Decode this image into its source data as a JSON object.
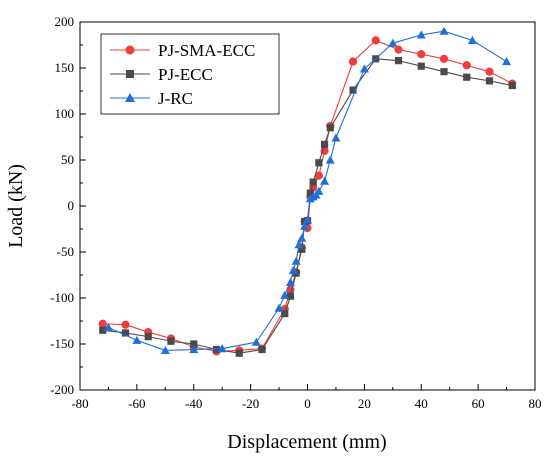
{
  "chart_data": {
    "type": "line",
    "xlabel": "Displacement (mm)",
    "ylabel": "Load (kN)",
    "xlim": [
      -80,
      80
    ],
    "ylim": [
      -200,
      200
    ],
    "xticks": [
      -80,
      -60,
      -40,
      -20,
      0,
      20,
      40,
      60,
      80
    ],
    "yticks": [
      -200,
      -150,
      -100,
      -50,
      0,
      50,
      100,
      150,
      200
    ],
    "grid": false,
    "legend_position": "top-left",
    "series": [
      {
        "name": "PJ-SMA-ECC",
        "color": "#f03c3c",
        "marker": "circle",
        "x": [
          -72,
          -64,
          -56,
          -48,
          -40,
          -32,
          -24,
          -16,
          -8,
          -6,
          -4,
          -2,
          -1,
          0,
          1,
          2,
          4,
          6,
          8,
          16,
          24,
          32,
          40,
          48,
          56,
          64,
          72
        ],
        "y": [
          -128,
          -129,
          -137,
          -144,
          -153,
          -158,
          -157,
          -155,
          -112,
          -91,
          -72,
          -45,
          -17,
          -24,
          10,
          20,
          33,
          60,
          87,
          157,
          180,
          170,
          165,
          160,
          153,
          146,
          133
        ]
      },
      {
        "name": "PJ-ECC",
        "color": "#4a4a4a",
        "marker": "square",
        "x": [
          -72,
          -64,
          -56,
          -48,
          -40,
          -32,
          -24,
          -16,
          -8,
          -6,
          -4,
          -2,
          -1,
          0,
          1,
          2,
          4,
          6,
          8,
          16,
          24,
          32,
          40,
          48,
          56,
          64,
          72
        ],
        "y": [
          -135,
          -138,
          -142,
          -147,
          -150,
          -156,
          -160,
          -156,
          -117,
          -98,
          -73,
          -47,
          -17,
          -16,
          14,
          26,
          47,
          67,
          85,
          126,
          160,
          158,
          152,
          146,
          140,
          136,
          131
        ]
      },
      {
        "name": "J-RC",
        "color": "#1e6fdc",
        "marker": "triangle",
        "x": [
          -70,
          -60,
          -50,
          -40,
          -30,
          -18,
          -10,
          -8,
          -6,
          -5,
          -4,
          -3,
          -2,
          -1,
          0,
          1,
          2,
          3,
          4,
          6,
          8,
          10,
          20,
          30,
          40,
          48,
          58,
          70
        ],
        "y": [
          -132,
          -146,
          -157,
          -156,
          -155,
          -148,
          -111,
          -97,
          -83,
          -70,
          -60,
          -42,
          -35,
          -22,
          -15,
          8,
          10,
          12,
          16,
          27,
          50,
          74,
          149,
          177,
          186,
          190,
          180,
          157
        ]
      }
    ]
  }
}
